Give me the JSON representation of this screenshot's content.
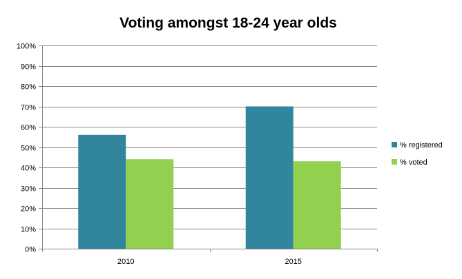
{
  "chart_data": {
    "type": "bar",
    "title": "Voting amongst 18-24 year olds",
    "xlabel": "",
    "ylabel": "",
    "categories": [
      "2010",
      "2015"
    ],
    "series": [
      {
        "name": "% registered",
        "color": "#31859C",
        "values": [
          56,
          70
        ]
      },
      {
        "name": "% voted",
        "color": "#92D050",
        "values": [
          44,
          43
        ]
      }
    ],
    "ylim": [
      0,
      100
    ],
    "yticks": [
      "0%",
      "10%",
      "20%",
      "30%",
      "40%",
      "50%",
      "60%",
      "70%",
      "80%",
      "90%",
      "100%"
    ],
    "grid": true,
    "legend_position": "right"
  }
}
